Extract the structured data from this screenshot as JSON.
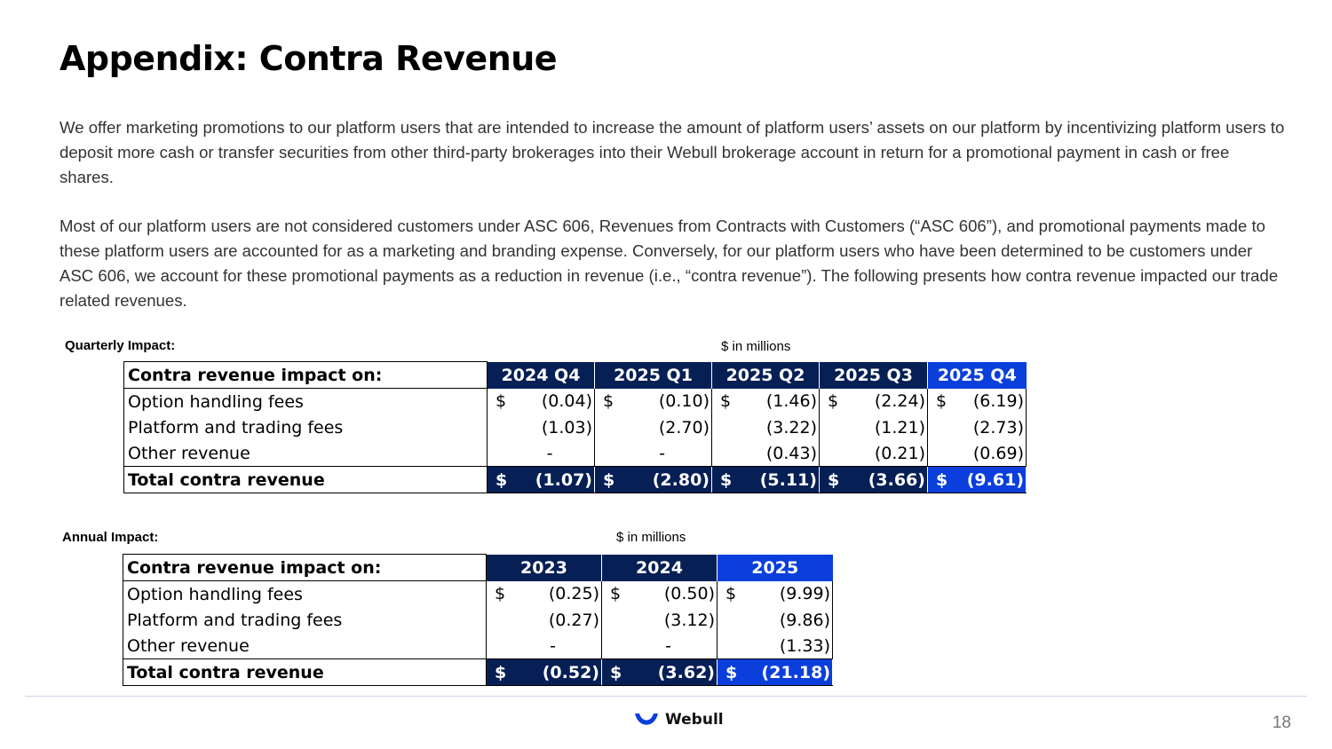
{
  "title": "Appendix: Contra Revenue",
  "paragraphs": [
    "We offer marketing promotions to our platform users that are intended to increase the amount of platform users’ assets on our platform by incentivizing platform users to deposit more cash or transfer securities from other third-party brokerages into their Webull brokerage account in return for a promotional payment in cash or free shares.",
    "Most of our platform users are not considered customers under ASC 606, Revenues from Contracts with Customers (“ASC 606”), and promotional payments made to these platform users are accounted for as a marketing and branding expense. Conversely, for our platform users who have been determined to be customers under ASC 606, we account for these promotional payments as a reduction in revenue (i.e., “contra revenue”).  The following presents how contra revenue impacted our trade related revenues."
  ],
  "quarterly": {
    "label": "Quarterly Impact:",
    "unit": "$ in millions",
    "header": "Contra revenue impact on:",
    "columns": [
      "2024 Q4",
      "2025 Q1",
      "2025 Q2",
      "2025 Q3",
      "2025 Q4"
    ],
    "rows": [
      {
        "name": "Option handling fees",
        "cells": [
          {
            "sym": "$",
            "val": "(0.04)"
          },
          {
            "sym": "$",
            "val": "(0.10)"
          },
          {
            "sym": "$",
            "val": "(1.46)"
          },
          {
            "sym": "$",
            "val": "(2.24)"
          },
          {
            "sym": "$",
            "val": "(6.19)"
          }
        ]
      },
      {
        "name": "Platform and trading fees",
        "cells": [
          {
            "sym": "",
            "val": "(1.03)"
          },
          {
            "sym": "",
            "val": "(2.70)"
          },
          {
            "sym": "",
            "val": "(3.22)"
          },
          {
            "sym": "",
            "val": "(1.21)"
          },
          {
            "sym": "",
            "val": "(2.73)"
          }
        ]
      },
      {
        "name": "Other revenue",
        "cells": [
          {
            "sym": "",
            "val": "-"
          },
          {
            "sym": "",
            "val": "-"
          },
          {
            "sym": "",
            "val": "(0.43)"
          },
          {
            "sym": "",
            "val": "(0.21)"
          },
          {
            "sym": "",
            "val": "(0.69)"
          }
        ]
      },
      {
        "name": "Total contra revenue",
        "cells": [
          {
            "sym": "$",
            "val": "(1.07)"
          },
          {
            "sym": "$",
            "val": "(2.80)"
          },
          {
            "sym": "$",
            "val": "(5.11)"
          },
          {
            "sym": "$",
            "val": "(3.66)"
          },
          {
            "sym": "$",
            "val": "(9.61)"
          }
        ]
      }
    ]
  },
  "annual": {
    "label": "Annual Impact:",
    "unit": "$ in millions",
    "header": "Contra revenue impact on:",
    "columns": [
      "2023",
      "2024",
      "2025"
    ],
    "rows": [
      {
        "name": "Option handling fees",
        "cells": [
          {
            "sym": "$",
            "val": "(0.25)"
          },
          {
            "sym": "$",
            "val": "(0.50)"
          },
          {
            "sym": "$",
            "val": "(9.99)"
          }
        ]
      },
      {
        "name": "Platform and trading fees",
        "cells": [
          {
            "sym": "",
            "val": "(0.27)"
          },
          {
            "sym": "",
            "val": "(3.12)"
          },
          {
            "sym": "",
            "val": "(9.86)"
          }
        ]
      },
      {
        "name": "Other revenue",
        "cells": [
          {
            "sym": "",
            "val": "-"
          },
          {
            "sym": "",
            "val": "-"
          },
          {
            "sym": "",
            "val": "(1.33)"
          }
        ]
      },
      {
        "name": "Total contra revenue",
        "cells": [
          {
            "sym": "$",
            "val": "(0.52)"
          },
          {
            "sym": "$",
            "val": "(3.62)"
          },
          {
            "sym": "$",
            "val": "(21.18)"
          }
        ]
      }
    ]
  },
  "footer": {
    "brand": "Webull",
    "logo_icon": "webull-logo-icon",
    "page_number": "18"
  },
  "colors": {
    "header_navy": "#061f55",
    "highlight_blue": "#0a3fdc"
  }
}
